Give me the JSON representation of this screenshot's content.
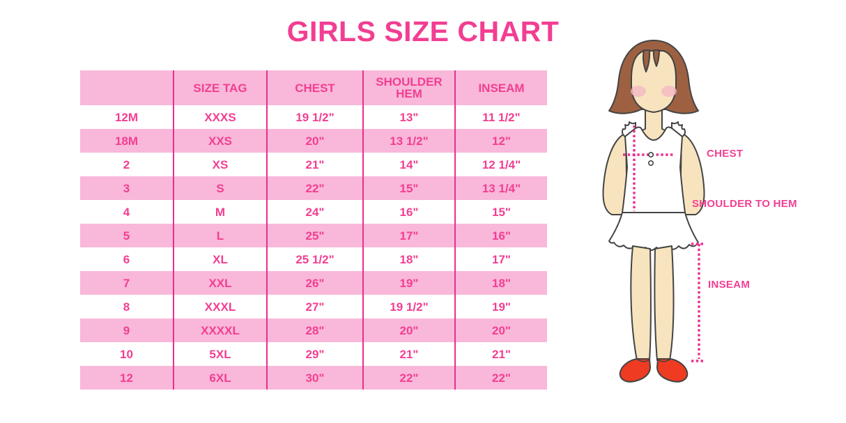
{
  "chart_data": {
    "type": "table",
    "title": "GIRLS SIZE CHART",
    "columns": [
      "",
      "SIZE TAG",
      "CHEST",
      "SHOULDER HEM",
      "INSEAM"
    ],
    "rows": [
      [
        "12M",
        "XXXS",
        "19 1/2\"",
        "13\"",
        "11 1/2\""
      ],
      [
        "18M",
        "XXS",
        "20\"",
        "13 1/2\"",
        "12\""
      ],
      [
        "2",
        "XS",
        "21\"",
        "14\"",
        "12 1/4\""
      ],
      [
        "3",
        "S",
        "22\"",
        "15\"",
        "13 1/4\""
      ],
      [
        "4",
        "M",
        "24\"",
        "16\"",
        "15\""
      ],
      [
        "5",
        "L",
        "25\"",
        "17\"",
        "16\""
      ],
      [
        "6",
        "XL",
        "25 1/2\"",
        "18\"",
        "17\""
      ],
      [
        "7",
        "XXL",
        "26\"",
        "19\"",
        "18\""
      ],
      [
        "8",
        "XXXL",
        "27\"",
        "19 1/2\"",
        "19\""
      ],
      [
        "9",
        "XXXXL",
        "28\"",
        "20\"",
        "20\""
      ],
      [
        "10",
        "5XL",
        "29\"",
        "21\"",
        "21\""
      ],
      [
        "12",
        "6XL",
        "30\"",
        "22\"",
        "22\""
      ]
    ],
    "layout_hints": {
      "row_stripes": "alternating white and pink, first data row white",
      "grid": "vertical magenta separators between columns only"
    }
  },
  "figure": {
    "labels": {
      "chest": "CHEST",
      "shoulder_to_hem": "SHOULDER TO HEM",
      "inseam": "INSEAM"
    }
  },
  "colors": {
    "accent": "#F23E92",
    "row-pink": "#F9B8D9",
    "grid-line": "#EA2E8E",
    "hair": "#9D6142",
    "skin": "#F7E4BE",
    "blush": "#F4B8C4",
    "shoe": "#EE3B22",
    "outline": "#434343"
  }
}
